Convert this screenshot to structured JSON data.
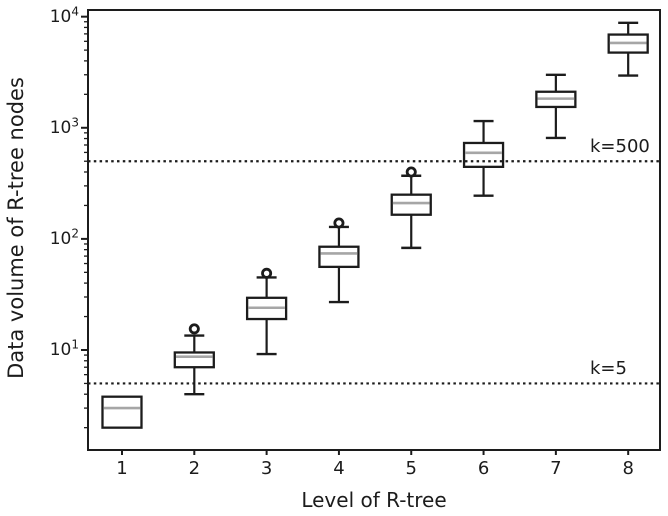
{
  "chart_data": {
    "type": "boxplot",
    "title": "",
    "xlabel": "Level of R-tree",
    "ylabel": "Data volume of R-tree nodes",
    "y_scale": "log",
    "x_categories": [
      "1",
      "2",
      "3",
      "4",
      "5",
      "6",
      "7",
      "8"
    ],
    "y_tick_exponents": [
      1,
      2,
      3,
      4
    ],
    "y_tick_labels": [
      "10¹",
      "10²",
      "10³",
      "10⁴"
    ],
    "ylim_exponents": [
      0.1,
      4.06
    ],
    "grid": false,
    "boxes": [
      {
        "level": 1,
        "whisker_low": 2.0,
        "q1": 2.0,
        "median": 3.0,
        "q3": 3.8,
        "whisker_high": 3.8,
        "outliers": []
      },
      {
        "level": 2,
        "whisker_low": 4.0,
        "q1": 7.0,
        "median": 8.7,
        "q3": 9.5,
        "whisker_high": 13.5,
        "outliers": [
          15.5
        ]
      },
      {
        "level": 3,
        "whisker_low": 9.2,
        "q1": 19,
        "median": 24,
        "q3": 29.5,
        "whisker_high": 45,
        "outliers": [
          49
        ]
      },
      {
        "level": 4,
        "whisker_low": 27,
        "q1": 56,
        "median": 74,
        "q3": 85,
        "whisker_high": 128,
        "outliers": [
          139
        ]
      },
      {
        "level": 5,
        "whisker_low": 83,
        "q1": 165,
        "median": 210,
        "q3": 250,
        "whisker_high": 370,
        "outliers": [
          400
        ]
      },
      {
        "level": 6,
        "whisker_low": 245,
        "q1": 445,
        "median": 595,
        "q3": 730,
        "whisker_high": 1150,
        "outliers": []
      },
      {
        "level": 7,
        "whisker_low": 810,
        "q1": 1540,
        "median": 1830,
        "q3": 2110,
        "whisker_high": 3000,
        "outliers": []
      },
      {
        "level": 8,
        "whisker_low": 2950,
        "q1": 4750,
        "median": 5800,
        "q3": 6900,
        "whisker_high": 8800,
        "outliers": []
      }
    ],
    "reference_lines": [
      {
        "label": "k=500",
        "value": 500
      },
      {
        "label": "k=5",
        "value": 5
      }
    ],
    "colors": {
      "line": "#1c1c1c",
      "median": "#a6a6a6",
      "background": "#ffffff"
    }
  }
}
